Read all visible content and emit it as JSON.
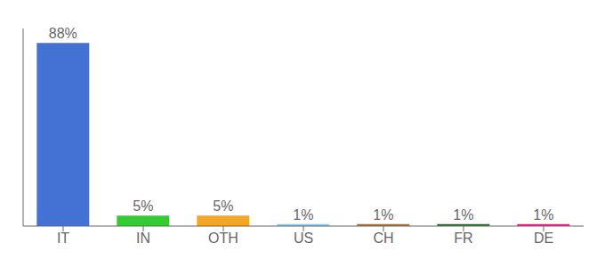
{
  "chart_data": {
    "type": "bar",
    "categories": [
      "IT",
      "IN",
      "OTH",
      "US",
      "CH",
      "FR",
      "DE"
    ],
    "values": [
      88,
      5,
      5,
      1,
      1,
      1,
      1
    ],
    "value_labels": [
      "88%",
      "5%",
      "5%",
      "1%",
      "1%",
      "1%",
      "1%"
    ],
    "colors": [
      "#4472d4",
      "#33cc33",
      "#f5a623",
      "#87ceeb",
      "#b07030",
      "#2d6e2d",
      "#e91e8c"
    ],
    "ylim": [
      0,
      95
    ],
    "data_labels": true,
    "tick_labels": "x"
  }
}
